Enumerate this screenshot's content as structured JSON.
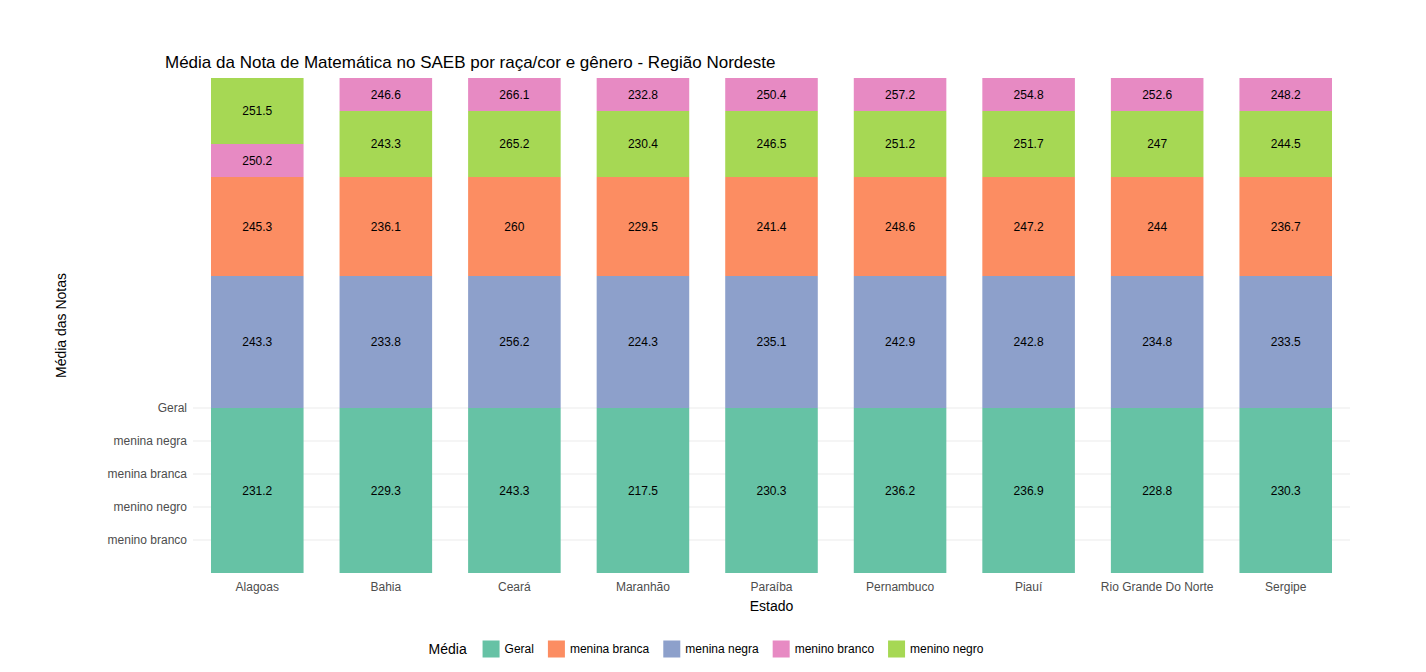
{
  "chart_data": {
    "type": "bar",
    "stacked": true,
    "title": "Média da Nota de Matemática no SAEB por raça/cor e gênero - Região Nordeste",
    "x_label": "Estado",
    "y_label": "Média das Notas",
    "legend_title": "Média",
    "legend": "bottom",
    "grid": true,
    "categories": [
      "Alagoas",
      "Bahia",
      "Ceará",
      "Maranhão",
      "Paraíba",
      "Pernambuco",
      "Piauí",
      "Rio Grande Do Norte",
      "Sergipe"
    ],
    "ylim": [
      0,
      15
    ],
    "yticks": [
      {
        "value": 1,
        "label": "menino branco"
      },
      {
        "value": 2,
        "label": "menino negro"
      },
      {
        "value": 3,
        "label": "menina branca"
      },
      {
        "value": 4,
        "label": "menina negra"
      },
      {
        "value": 5,
        "label": "Geral"
      }
    ],
    "series": [
      {
        "name": "Geral",
        "color": "#66c2a5",
        "values": [
          5,
          5,
          5,
          5,
          5,
          5,
          5,
          5,
          5
        ],
        "means": [
          231.2,
          229.3,
          243.3,
          217.5,
          230.3,
          236.2,
          236.9,
          228.8,
          230.3
        ]
      },
      {
        "name": "menina branca",
        "color": "#fc8d62",
        "values": [
          3,
          3,
          3,
          3,
          3,
          3,
          3,
          3,
          3
        ],
        "means": [
          245.3,
          236.1,
          260,
          229.5,
          241.4,
          248.6,
          247.2,
          244,
          236.7
        ]
      },
      {
        "name": "menina negra",
        "color": "#8da0cb",
        "values": [
          4,
          4,
          4,
          4,
          4,
          4,
          4,
          4,
          4
        ],
        "means": [
          243.3,
          233.8,
          256.2,
          224.3,
          235.1,
          242.9,
          242.8,
          234.8,
          233.5
        ]
      },
      {
        "name": "menino branco",
        "color": "#e78ac3",
        "values": [
          1,
          1,
          1,
          1,
          1,
          1,
          1,
          1,
          1
        ],
        "means": [
          250.2,
          246.6,
          266.1,
          232.8,
          250.4,
          257.2,
          254.8,
          252.6,
          248.2
        ]
      },
      {
        "name": "menino negro",
        "color": "#a6d854",
        "values": [
          2,
          2,
          2,
          2,
          2,
          2,
          2,
          2,
          2
        ],
        "means": [
          251.5,
          243.3,
          265.2,
          230.4,
          246.5,
          251.2,
          251.7,
          247,
          244.5
        ]
      }
    ]
  }
}
